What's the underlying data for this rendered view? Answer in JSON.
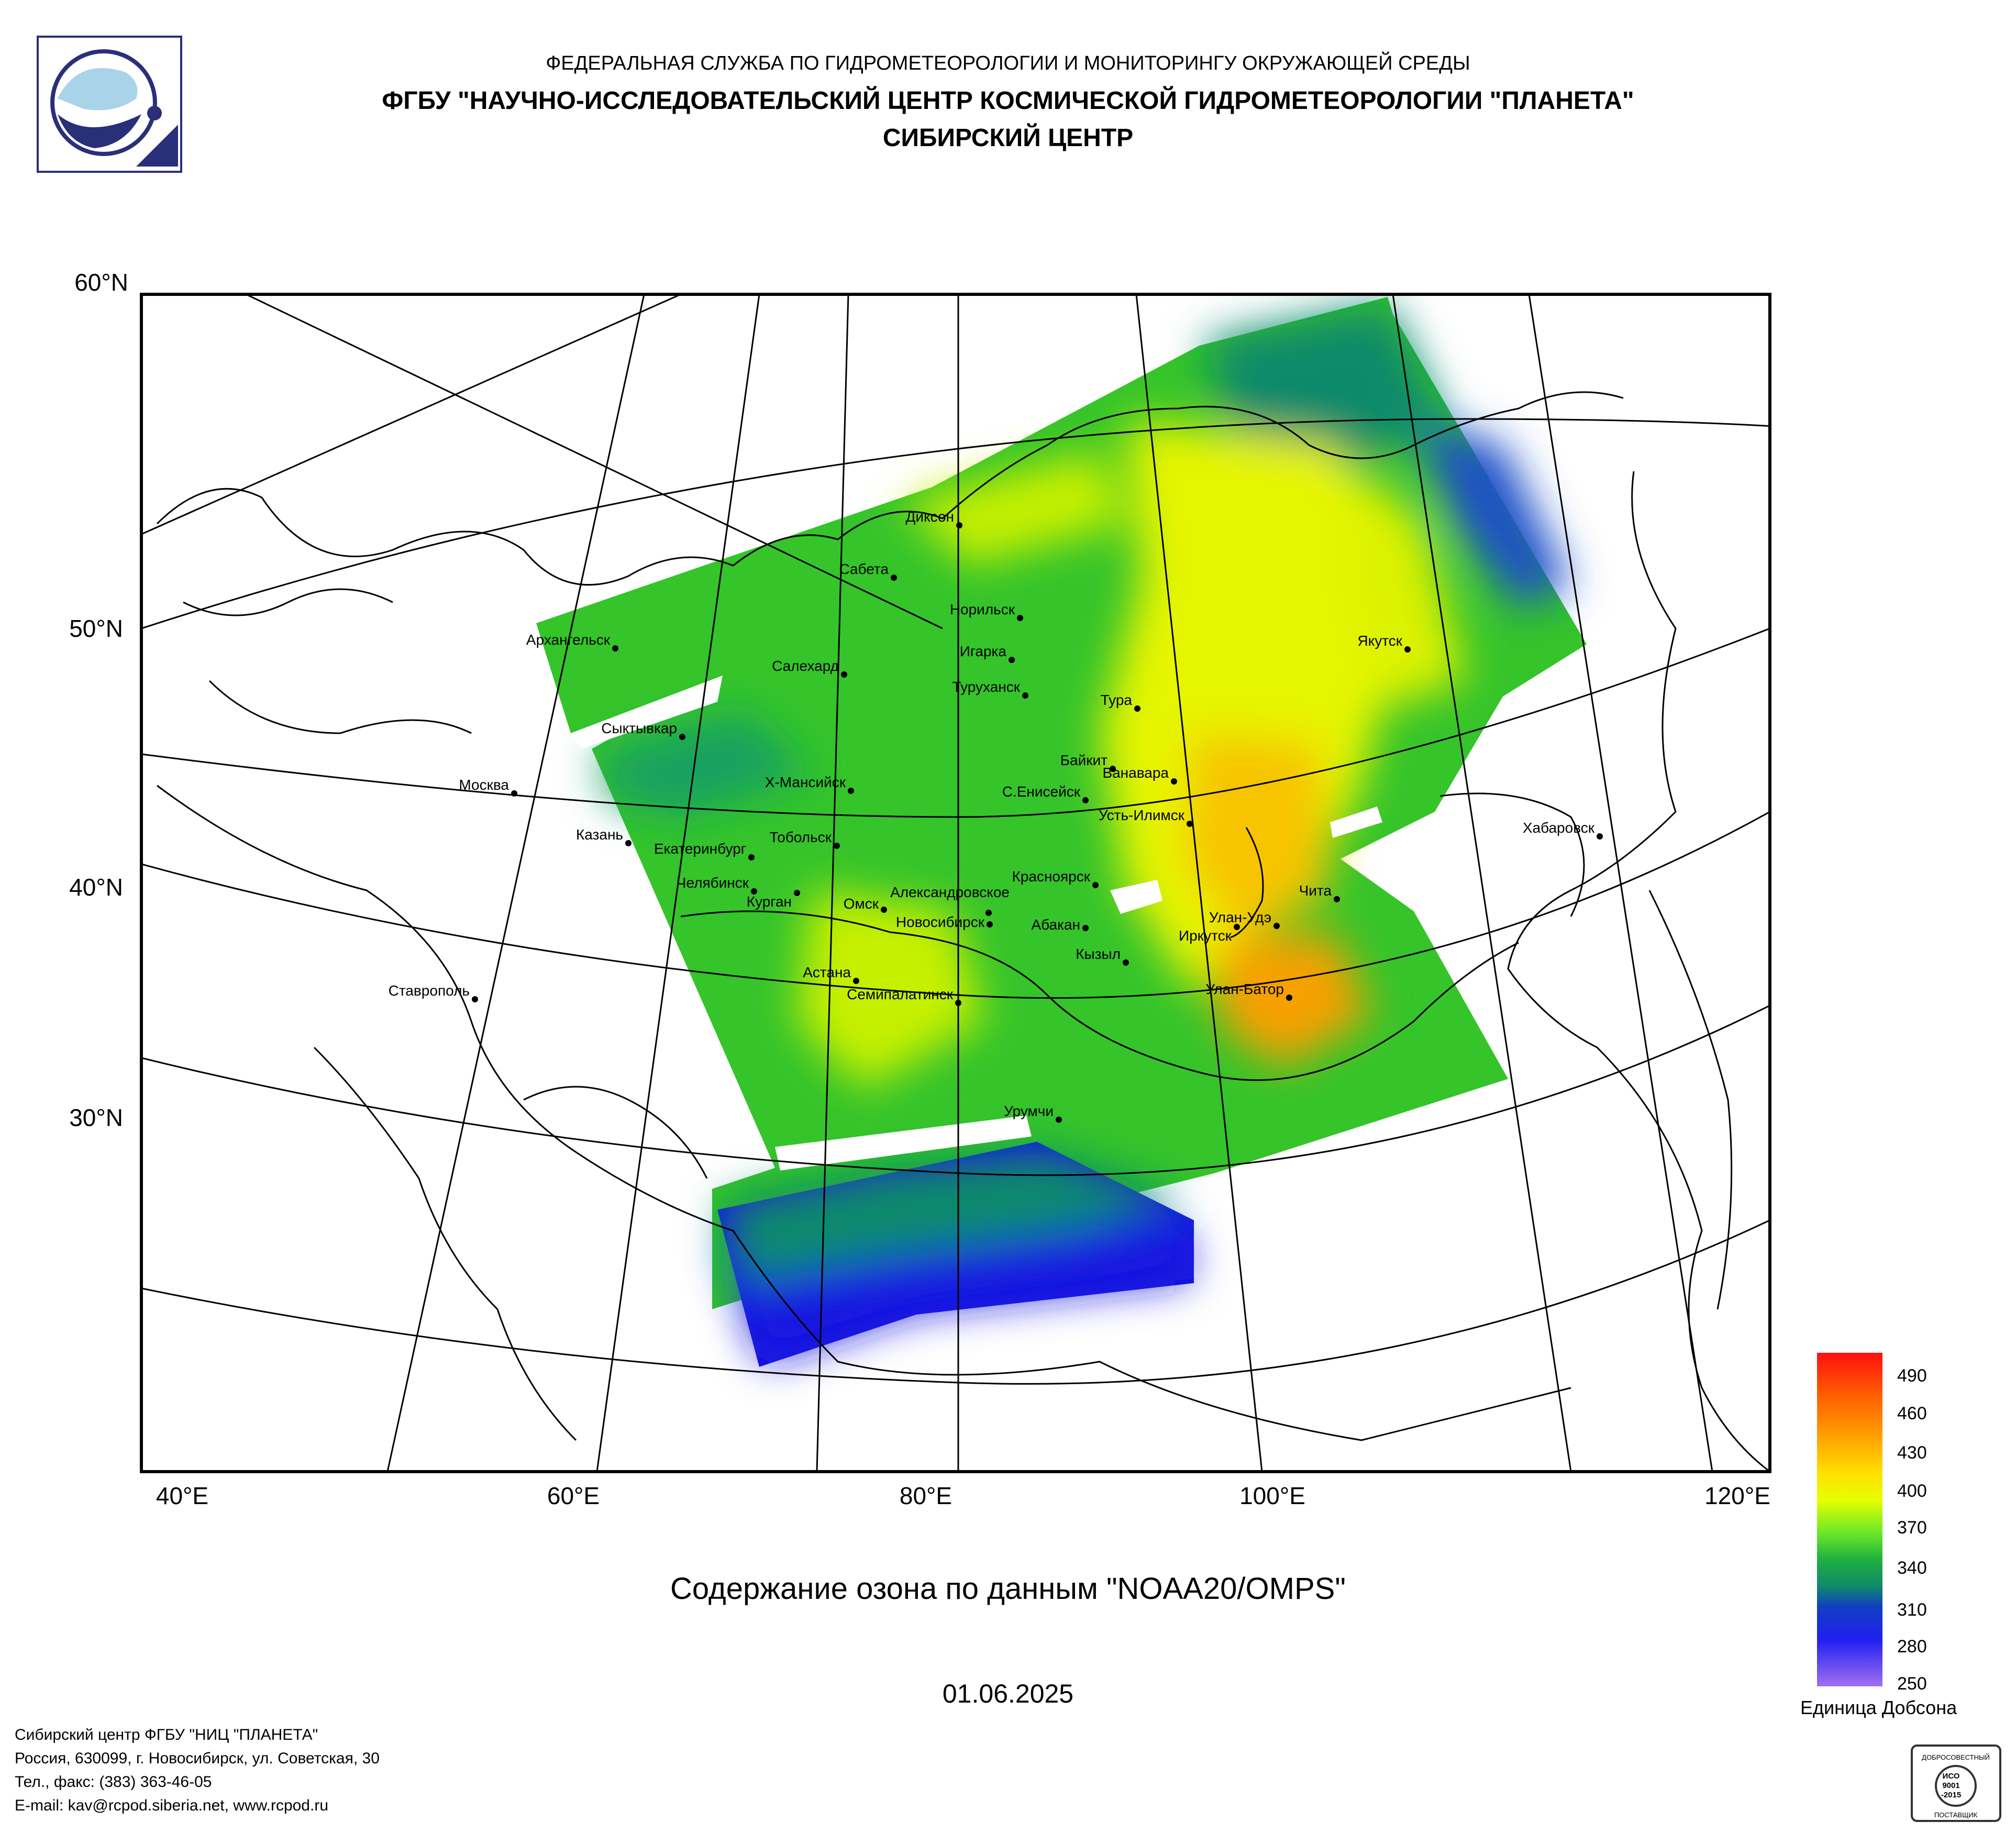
{
  "header": {
    "line1": "ФЕДЕРАЛЬНАЯ СЛУЖБА ПО ГИДРОМЕТЕОРОЛОГИИ И МОНИТОРИНГУ ОКРУЖАЮЩЕЙ СРЕДЫ",
    "line2": "ФГБУ \"НАУЧНО-ИССЛЕДОВАТЕЛЬСКИЙ ЦЕНТР КОСМИЧЕСКОЙ ГИДРОМЕТЕОРОЛОГИИ \"ПЛАНЕТА\"",
    "line3": "СИБИРСКИЙ ЦЕНТР"
  },
  "map": {
    "lat_labels": [
      "60°N",
      "50°N",
      "40°N",
      "30°N"
    ],
    "lon_labels": [
      "40°E",
      "60°E",
      "80°E",
      "100°E",
      "120°E"
    ],
    "cities": [
      "Диксон",
      "Сабета",
      "Норильск",
      "Салехард",
      "Игарка",
      "Туруханск",
      "Архангельск",
      "Якутск",
      "Тура",
      "Сыктывкар",
      "Байкит",
      "Ванавара",
      "Москва",
      "Х-Мансийск",
      "С.Енисейск",
      "Усть-Илимск",
      "Казань",
      "Тобольск",
      "Екатеринбург",
      "Хабаровск",
      "Челябинск",
      "Красноярск",
      "Александровское",
      "Курган",
      "Чита",
      "Омск",
      "Новосибирск",
      "Абакан",
      "Улан-Удэ",
      "Иркутск",
      "Кызыл",
      "Астана",
      "Ставрополь",
      "Улан-Батор",
      "Семипалатинск",
      "Урумчи"
    ]
  },
  "colors": {
    "high": "#f7a000",
    "mid": "#e6f500",
    "green": "#2cb82c",
    "low": "#1818e0"
  },
  "title": "Содержание озона по данным \"NOAA20/OMPS\"",
  "date": "01.06.2025",
  "colorbar": {
    "ticks": [
      "490",
      "460",
      "430",
      "400",
      "370",
      "340",
      "310",
      "280",
      "250"
    ],
    "unit": "Единица Добсона"
  },
  "footer": {
    "line1": "Сибирский центр ФГБУ \"НИЦ \"ПЛАНЕТА\"",
    "line2": "Россия, 630099, г. Новосибирск, ул. Советская, 30",
    "line3": "Тел., факс: (383) 363-46-05",
    "line4": "E-mail: kav@rcpod.siberia.net, www.rcpod.ru"
  },
  "iso_badge": {
    "top": "ДОБРОСОВЕСТНЫЙ",
    "mid1": "ИСО",
    "mid2": "9001",
    "mid3": "-2015",
    "bottom": "ПОСТАВЩИК"
  }
}
